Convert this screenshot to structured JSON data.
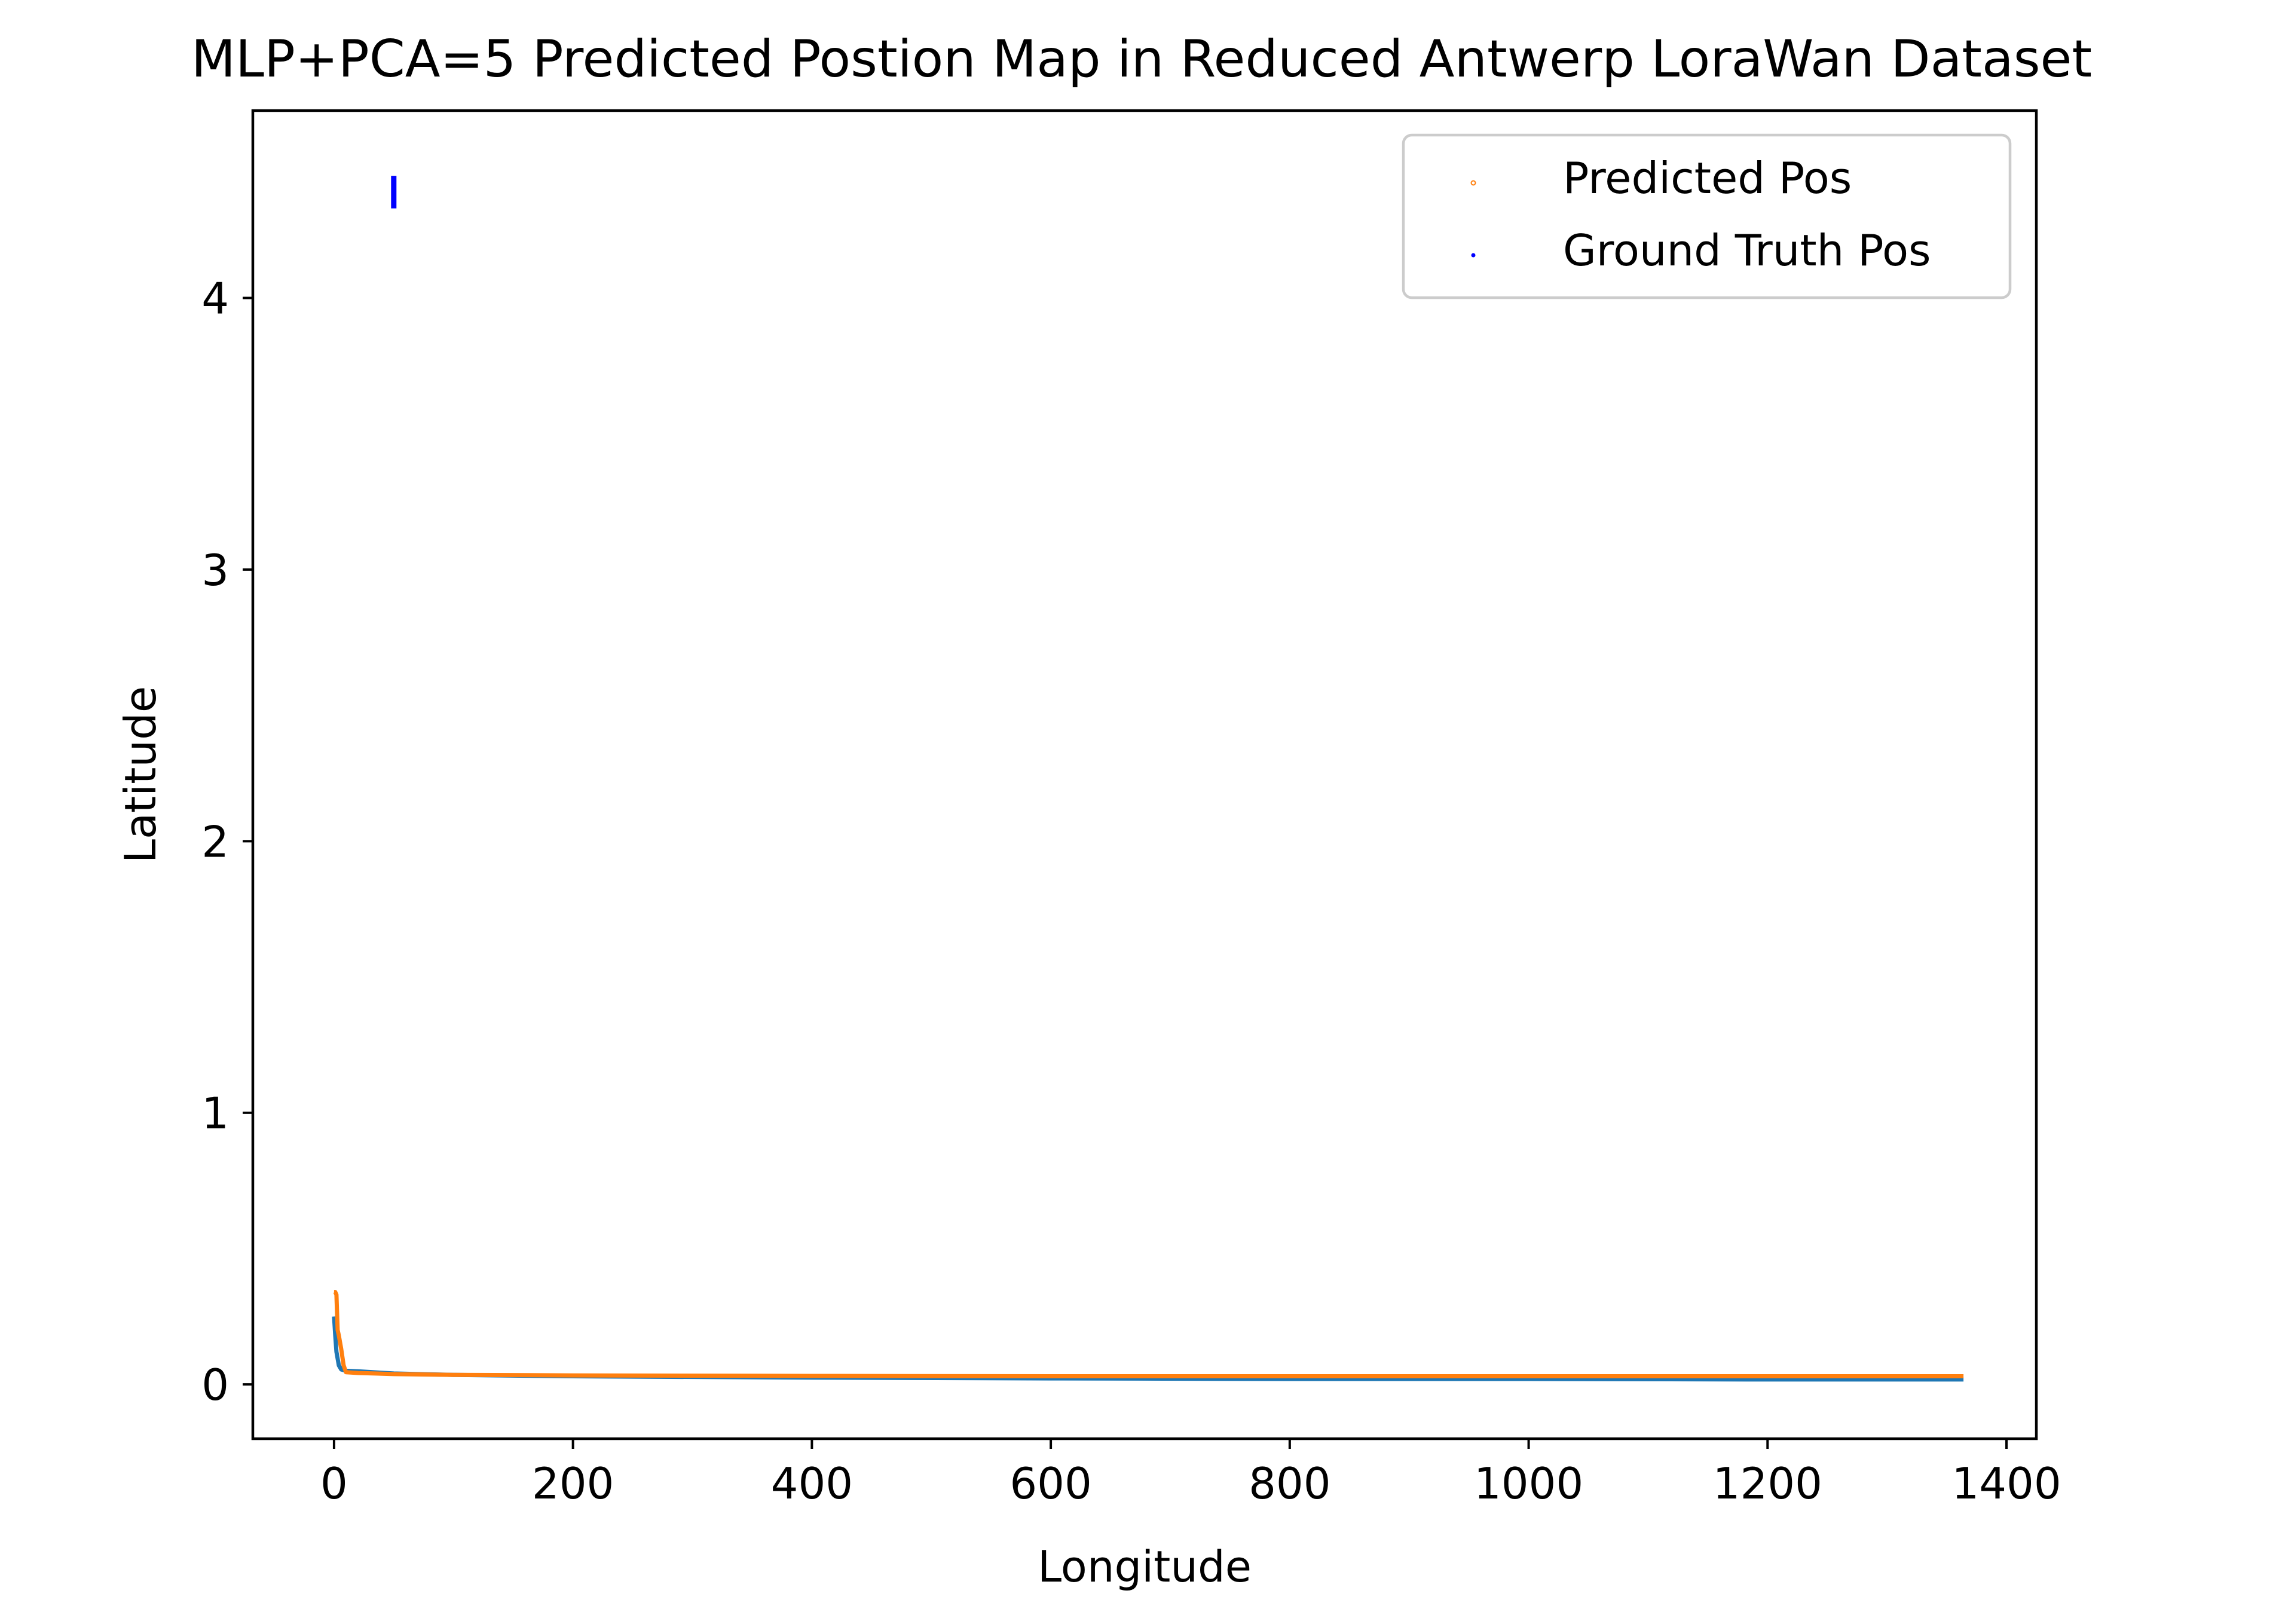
{
  "chart_data": {
    "type": "line",
    "title": "MLP+PCA=5 Predicted Postion Map in Reduced Antwerp LoraWan Dataset",
    "xlabel": "Longitude",
    "ylabel": "Latitude",
    "xlim": [
      -68,
      1425
    ],
    "ylim": [
      -0.2,
      4.69
    ],
    "xticks": [
      0,
      200,
      400,
      600,
      800,
      1000,
      1200,
      1400
    ],
    "xtick_labels": [
      "0",
      "200",
      "400",
      "600",
      "800",
      "1000",
      "1200",
      "1400"
    ],
    "yticks": [
      0,
      1,
      2,
      3,
      4
    ],
    "ytick_labels": [
      "0",
      "1",
      "2",
      "3",
      "4"
    ],
    "grid": false,
    "legend": {
      "position": "top-right",
      "entries": [
        {
          "label": "Predicted Pos",
          "color": "#ff7f0e",
          "marker": "small-circle"
        },
        {
          "label": "Ground Truth Pos",
          "color": "#0000ff",
          "marker": "point"
        }
      ]
    },
    "series": [
      {
        "color": "#1f77b4",
        "x": [
          0,
          1,
          2,
          4,
          6,
          10,
          20,
          50,
          100,
          200,
          400,
          600,
          800,
          1000,
          1200,
          1364
        ],
        "y": [
          0.25,
          0.18,
          0.12,
          0.07,
          0.055,
          0.05,
          0.048,
          0.04,
          0.035,
          0.03,
          0.025,
          0.022,
          0.02,
          0.02,
          0.018,
          0.018
        ]
      },
      {
        "color": "#ff7f0e",
        "x": [
          0,
          1,
          2,
          3,
          4,
          6,
          8,
          10,
          20,
          50,
          100,
          200,
          400,
          600,
          800,
          1000,
          1200,
          1364
        ],
        "y": [
          0.34,
          0.34,
          0.33,
          0.2,
          0.18,
          0.13,
          0.07,
          0.045,
          0.042,
          0.038,
          0.035,
          0.033,
          0.031,
          0.03,
          0.03,
          0.03,
          0.03,
          0.03
        ]
      },
      {
        "color": "#0000ff",
        "x": [
          50,
          50,
          50,
          50,
          50,
          50,
          50
        ],
        "y": [
          4.33,
          4.35,
          4.37,
          4.39,
          4.41,
          4.43,
          4.45
        ]
      }
    ]
  }
}
